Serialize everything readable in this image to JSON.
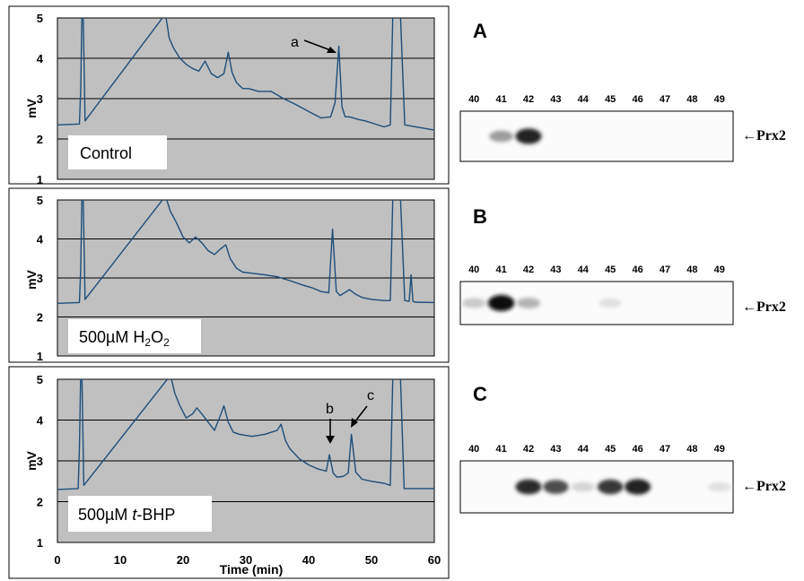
{
  "colors": {
    "plot_bg": "#c0c0c0",
    "trace": "#1f4e79",
    "gridline": "#000000"
  },
  "chart_data": [
    {
      "type": "line",
      "ylabel": "mV",
      "xlabel": "",
      "ylim": [
        1,
        5
      ],
      "xlim": [
        0,
        60
      ],
      "yticks": [
        "1",
        "2",
        "3",
        "4",
        "5"
      ],
      "condition_label": "Control",
      "annotations": [
        {
          "text": "a",
          "x": 44.8,
          "y": 4.3
        }
      ],
      "series": [
        {
          "x": [
            0,
            3.5,
            3.7,
            3.9,
            4.1,
            4.4,
            17.2,
            17.8,
            18.5,
            19.5,
            20.5,
            21.5,
            22.5,
            23.5,
            24.5,
            25.5,
            26.5,
            27.2,
            27.8,
            28.5,
            29.5,
            30.5,
            32,
            34,
            36,
            38,
            40,
            42,
            43.5,
            44.2,
            44.8,
            45.3,
            45.8,
            46.5,
            48,
            49,
            50,
            52,
            53,
            53.4,
            53.8,
            54.2,
            54.6,
            55.3,
            60
          ],
          "y": [
            2.35,
            2.37,
            3.2,
            5.1,
            5.1,
            2.45,
            5.1,
            4.5,
            4.25,
            4.0,
            3.85,
            3.75,
            3.68,
            3.93,
            3.62,
            3.52,
            3.62,
            4.15,
            3.65,
            3.4,
            3.25,
            3.25,
            3.18,
            3.18,
            3.0,
            2.85,
            2.68,
            2.52,
            2.55,
            2.9,
            4.3,
            2.8,
            2.55,
            2.55,
            2.48,
            2.45,
            2.4,
            2.3,
            2.35,
            5.1,
            5.1,
            5.1,
            5.1,
            2.35,
            2.22
          ]
        }
      ]
    },
    {
      "type": "line",
      "ylabel": "mV",
      "xlabel": "",
      "ylim": [
        1,
        5
      ],
      "xlim": [
        0,
        60
      ],
      "yticks": [
        "1",
        "2",
        "3",
        "4",
        "5"
      ],
      "condition_label_pre": "500µM H",
      "condition_sub1": "2",
      "condition_mid": "O",
      "condition_sub2": "2",
      "annotations": [],
      "series": [
        {
          "x": [
            0,
            3.5,
            3.7,
            3.9,
            4.1,
            4.4,
            17.2,
            18,
            19,
            20,
            21,
            22,
            23,
            24,
            25,
            26,
            26.8,
            27.5,
            28.5,
            29.5,
            31,
            33,
            35,
            37,
            39,
            40.5,
            42,
            43.2,
            43.8,
            44.4,
            45,
            46.5,
            47.5,
            48.5,
            50,
            52,
            53,
            53.4,
            53.8,
            54.2,
            54.6,
            55.3,
            56,
            56.3,
            56.6,
            57,
            60
          ],
          "y": [
            2.35,
            2.37,
            3.2,
            5.1,
            5.1,
            2.45,
            5.1,
            4.7,
            4.4,
            4.05,
            3.9,
            4.05,
            3.9,
            3.7,
            3.6,
            3.75,
            3.85,
            3.5,
            3.25,
            3.15,
            3.12,
            3.08,
            3.03,
            2.93,
            2.82,
            2.75,
            2.65,
            2.62,
            4.25,
            2.65,
            2.55,
            2.7,
            2.58,
            2.5,
            2.45,
            2.42,
            2.42,
            5.1,
            5.1,
            5.1,
            5.1,
            2.42,
            2.4,
            3.08,
            2.4,
            2.38,
            2.37
          ]
        }
      ]
    },
    {
      "type": "line",
      "ylabel": "mV",
      "xlabel": "Time (min)",
      "ylim": [
        1,
        5
      ],
      "xlim": [
        0,
        60
      ],
      "xticks": [
        "0",
        "10",
        "20",
        "30",
        "40",
        "50",
        "60"
      ],
      "yticks": [
        "1",
        "2",
        "3",
        "4",
        "5"
      ],
      "condition_label_pre": "500µM ",
      "condition_label_italic": "t",
      "condition_label_post": "-BHP",
      "annotations": [
        {
          "text": "b",
          "x": 43.5,
          "y": 3.3
        },
        {
          "text": "c",
          "x": 46.8,
          "y": 3.65
        }
      ],
      "series": [
        {
          "x": [
            0,
            3.3,
            3.5,
            3.7,
            3.9,
            4.2,
            18,
            18.7,
            19.5,
            20.5,
            21.5,
            22.2,
            23,
            24,
            25,
            25.8,
            26.5,
            27.2,
            28,
            29,
            31,
            33,
            35,
            35.6,
            36.3,
            37,
            38.5,
            40,
            41.5,
            42.8,
            43.3,
            43.9,
            44.5,
            45.5,
            46.3,
            46.8,
            47.5,
            48.5,
            50,
            52,
            53,
            53.4,
            53.8,
            54.2,
            54.6,
            55.2,
            60
          ],
          "y": [
            2.3,
            2.32,
            3.3,
            5.1,
            5.1,
            2.4,
            5.1,
            4.65,
            4.35,
            4.05,
            4.15,
            4.3,
            4.15,
            3.95,
            3.75,
            4.05,
            4.35,
            3.95,
            3.7,
            3.65,
            3.6,
            3.65,
            3.75,
            3.9,
            3.5,
            3.3,
            3.05,
            2.9,
            2.8,
            2.75,
            3.15,
            2.7,
            2.6,
            2.62,
            2.7,
            3.65,
            2.72,
            2.55,
            2.5,
            2.45,
            2.4,
            5.1,
            5.1,
            5.1,
            5.1,
            2.32,
            2.32
          ]
        }
      ]
    }
  ],
  "blots": [
    {
      "panel": "A",
      "lanes": [
        "40",
        "41",
        "42",
        "43",
        "44",
        "45",
        "46",
        "47",
        "48",
        "49"
      ],
      "protein_label": "←Prx2",
      "band_intensity": [
        0,
        0.35,
        0.9,
        0,
        0,
        0,
        0,
        0,
        0,
        0
      ]
    },
    {
      "panel": "B",
      "lanes": [
        "40",
        "41",
        "42",
        "43",
        "44",
        "45",
        "46",
        "47",
        "48",
        "49"
      ],
      "protein_label": "←Prx2",
      "band_intensity": [
        0.15,
        1.0,
        0.25,
        0,
        0,
        0.05,
        0,
        0,
        0,
        0
      ]
    },
    {
      "panel": "C",
      "lanes": [
        "40",
        "41",
        "42",
        "43",
        "44",
        "45",
        "46",
        "47",
        "48",
        "49"
      ],
      "protein_label": "←Prx2",
      "band_intensity": [
        0,
        0,
        0.85,
        0.7,
        0.1,
        0.8,
        0.9,
        0,
        0,
        0.05
      ]
    }
  ]
}
